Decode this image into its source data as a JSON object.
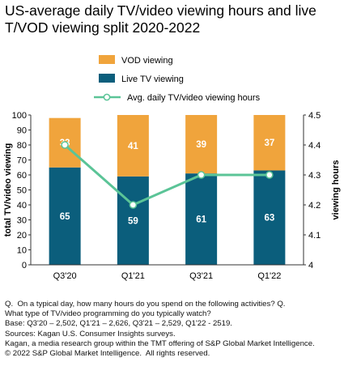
{
  "title": "US-average daily TV/video viewing hours and live T/VOD viewing split 2020-2022",
  "colors": {
    "vod": "#f0a43c",
    "live": "#0b5e7c",
    "line": "#5bc497",
    "axis": "#333333",
    "label_light": "#ffffff"
  },
  "chart_data": {
    "type": "bar",
    "stacked": true,
    "categories": [
      "Q3'20",
      "Q1'21",
      "Q3'21",
      "Q1'22"
    ],
    "series": [
      {
        "name": "Live TV viewing",
        "values": [
          65,
          59,
          61,
          63
        ],
        "axis": "left"
      },
      {
        "name": "VOD viewing",
        "values": [
          33,
          41,
          39,
          37
        ],
        "axis": "left"
      },
      {
        "name": "Avg. daily TV/video viewing hours",
        "type": "line",
        "values": [
          4.4,
          4.2,
          4.3,
          4.3
        ],
        "axis": "right"
      }
    ],
    "ylabel": "total TV/video viewing",
    "y2label": "viewing hours",
    "ylim": [
      0,
      100
    ],
    "y2lim": [
      4,
      4.5
    ],
    "yticks": [
      "0",
      "10",
      "20",
      "30",
      "40",
      "50",
      "60",
      "70",
      "80",
      "90",
      "100"
    ],
    "y2ticks": [
      "4",
      "4.1",
      "4.2",
      "4.3",
      "4.4",
      "4.5"
    ],
    "legend": [
      "VOD viewing",
      "Live TV viewing",
      "Avg. daily TV/video viewing hours"
    ],
    "legend_position": "top"
  },
  "notes": [
    "Q.  On a typical day, how many hours do you spend on the following activities? Q.",
    "What type of TV/video programming do you typically watch?",
    "Base: Q3'20 – 2,502, Q1'21 – 2,626, Q3'21 – 2,529, Q1'22 - 2519.",
    "Sources: Kagan U.S. Consumer Insights surveys.",
    "Kagan, a media research group within the TMT offering of S&P Global Market Intelligence.",
    "© 2022 S&P Global Market Intelligence.  All rights reserved."
  ]
}
